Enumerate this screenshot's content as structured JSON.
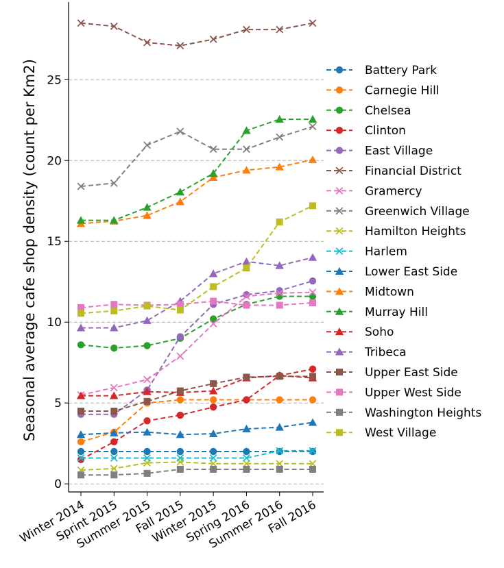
{
  "chart_data": {
    "type": "line",
    "title": "",
    "xlabel": "",
    "ylabel": "Seasonal average cafe shop density (count per Km2)",
    "categories": [
      "Winter 2014",
      "Sprint 2015",
      "Summer 2015",
      "Fall 2015",
      "Winter 2015",
      "Spring 2016",
      "Summer 2016",
      "Fall 2016"
    ],
    "ylim": [
      -0.5,
      29.8
    ],
    "yticks": [
      0,
      5,
      10,
      15,
      20,
      25
    ],
    "grid": "y-dashed",
    "legend_position": "right",
    "series": [
      {
        "name": "Battery Park",
        "color": "#1f77b4",
        "marker": "circle",
        "values": [
          2.0,
          2.0,
          2.0,
          2.0,
          2.0,
          2.0,
          2.0,
          2.0
        ]
      },
      {
        "name": "Carnegie Hill",
        "color": "#ff7f0e",
        "marker": "circle",
        "values": [
          2.6,
          3.2,
          5.0,
          5.2,
          5.2,
          5.2,
          5.2,
          5.2
        ]
      },
      {
        "name": "Chelsea",
        "color": "#2ca02c",
        "marker": "circle",
        "values": [
          8.6,
          8.4,
          8.55,
          9.0,
          10.2,
          11.1,
          11.6,
          11.6
        ]
      },
      {
        "name": "Clinton",
        "color": "#d62728",
        "marker": "circle",
        "values": [
          1.5,
          2.6,
          3.9,
          4.25,
          4.75,
          5.2,
          6.7,
          7.1
        ]
      },
      {
        "name": "East Village",
        "color": "#9467bd",
        "marker": "circle",
        "values": [
          4.3,
          4.3,
          5.8,
          9.1,
          11.1,
          11.7,
          11.95,
          12.55
        ]
      },
      {
        "name": "Financial District",
        "color": "#8c564b",
        "marker": "x",
        "values": [
          28.5,
          28.3,
          27.3,
          27.1,
          27.5,
          28.1,
          28.1,
          28.5
        ]
      },
      {
        "name": "Gramercy",
        "color": "#e377c2",
        "marker": "x",
        "values": [
          5.5,
          5.95,
          6.45,
          7.9,
          9.9,
          11.6,
          11.8,
          11.85
        ]
      },
      {
        "name": "Greenwich Village",
        "color": "#7f7f7f",
        "marker": "x",
        "values": [
          18.4,
          18.6,
          20.95,
          21.8,
          20.7,
          20.7,
          21.45,
          22.1
        ]
      },
      {
        "name": "Hamilton Heights",
        "color": "#bcbd22",
        "marker": "x",
        "values": [
          0.85,
          0.95,
          1.3,
          1.35,
          1.25,
          1.25,
          1.25,
          1.25
        ]
      },
      {
        "name": "Harlem",
        "color": "#17becf",
        "marker": "x",
        "values": [
          1.6,
          1.6,
          1.6,
          1.6,
          1.6,
          1.6,
          2.05,
          2.05
        ]
      },
      {
        "name": "Lower East Side",
        "color": "#1f77b4",
        "marker": "triangle",
        "values": [
          3.05,
          3.15,
          3.2,
          3.05,
          3.1,
          3.4,
          3.5,
          3.8
        ]
      },
      {
        "name": "Midtown",
        "color": "#ff7f0e",
        "marker": "triangle",
        "values": [
          16.1,
          16.25,
          16.6,
          17.45,
          18.95,
          19.4,
          19.6,
          20.05
        ]
      },
      {
        "name": "Murray Hill",
        "color": "#2ca02c",
        "marker": "triangle",
        "values": [
          16.3,
          16.3,
          17.1,
          18.05,
          19.2,
          21.85,
          22.55,
          22.55
        ]
      },
      {
        "name": "Soho",
        "color": "#d62728",
        "marker": "triangle",
        "values": [
          5.45,
          5.45,
          5.7,
          5.65,
          5.75,
          6.55,
          6.7,
          6.55
        ]
      },
      {
        "name": "Tribeca",
        "color": "#9467bd",
        "marker": "triangle",
        "values": [
          9.65,
          9.65,
          10.1,
          11.3,
          13.0,
          13.75,
          13.5,
          14.0
        ]
      },
      {
        "name": "Upper East Side",
        "color": "#8c564b",
        "marker": "square",
        "values": [
          4.5,
          4.5,
          5.1,
          5.75,
          6.2,
          6.6,
          6.65,
          6.65
        ]
      },
      {
        "name": "Upper West Side",
        "color": "#e377c2",
        "marker": "square",
        "values": [
          10.9,
          11.1,
          11.05,
          11.1,
          11.3,
          11.05,
          11.05,
          11.2
        ]
      },
      {
        "name": "Washington Heights",
        "color": "#7f7f7f",
        "marker": "square",
        "values": [
          0.55,
          0.55,
          0.65,
          0.9,
          0.9,
          0.9,
          0.9,
          0.9
        ]
      },
      {
        "name": "West Village",
        "color": "#bcbd22",
        "marker": "square",
        "values": [
          10.55,
          10.7,
          11.0,
          10.75,
          12.2,
          13.35,
          16.2,
          17.2
        ]
      }
    ]
  }
}
